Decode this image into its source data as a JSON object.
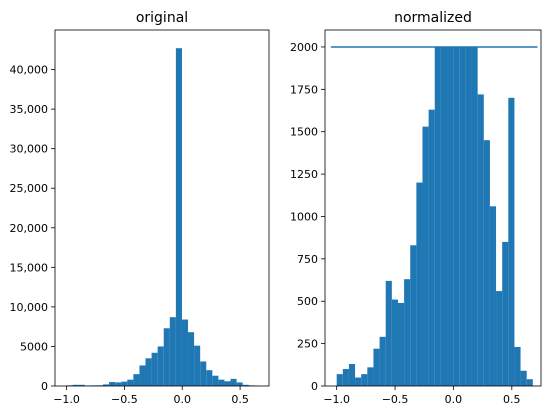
{
  "chart_data": [
    {
      "type": "bar",
      "title": "original",
      "xlim": [
        -1.1,
        0.75
      ],
      "ylim": [
        0,
        45000
      ],
      "xticks": [
        -1.0,
        -0.5,
        0.0,
        0.5
      ],
      "xtick_labels": [
        "−1.0",
        "−0.5",
        "0.0",
        "0.5"
      ],
      "yticks": [
        0,
        5000,
        10000,
        15000,
        20000,
        25000,
        30000,
        35000,
        40000
      ],
      "ytick_labels": [
        "0",
        "5000",
        "10,000",
        "15,000",
        "20,000",
        "25,000",
        "30,000",
        "35,000",
        "40,000"
      ],
      "bin_start": -1.0,
      "bin_width": 0.0525,
      "bar_color": "#1f77b4",
      "values": [
        80,
        150,
        150,
        60,
        80,
        90,
        200,
        500,
        450,
        550,
        800,
        1500,
        2600,
        3500,
        4200,
        5000,
        7300,
        8700,
        42700,
        8400,
        6800,
        5100,
        3100,
        2000,
        1300,
        800,
        600,
        900,
        450,
        150,
        80,
        50
      ]
    },
    {
      "type": "bar",
      "title": "normalized",
      "xlim": [
        -1.1,
        0.75
      ],
      "ylim": [
        0,
        2100
      ],
      "xticks": [
        -1.0,
        -0.5,
        0.0,
        0.5
      ],
      "xtick_labels": [
        "−1.0",
        "−0.5",
        "0.0",
        "0.5"
      ],
      "yticks": [
        0,
        250,
        500,
        750,
        1000,
        1250,
        1500,
        1750,
        2000
      ],
      "ytick_labels": [
        "0",
        "250",
        "500",
        "750",
        "1000",
        "1250",
        "1500",
        "1750",
        "2000"
      ],
      "bin_start": -1.0,
      "bin_width": 0.0525,
      "bar_color": "#1f77b4",
      "values": [
        70,
        100,
        130,
        50,
        70,
        110,
        220,
        290,
        620,
        510,
        490,
        630,
        830,
        1200,
        1530,
        1630,
        2000,
        2000,
        2000,
        2000,
        2000,
        2000,
        2000,
        1720,
        1450,
        1060,
        560,
        850,
        1700,
        230,
        90,
        40
      ],
      "reference_line": {
        "y": 2000,
        "x_range": [
          -1.05,
          0.72
        ],
        "color": "#1f77b4"
      }
    }
  ]
}
